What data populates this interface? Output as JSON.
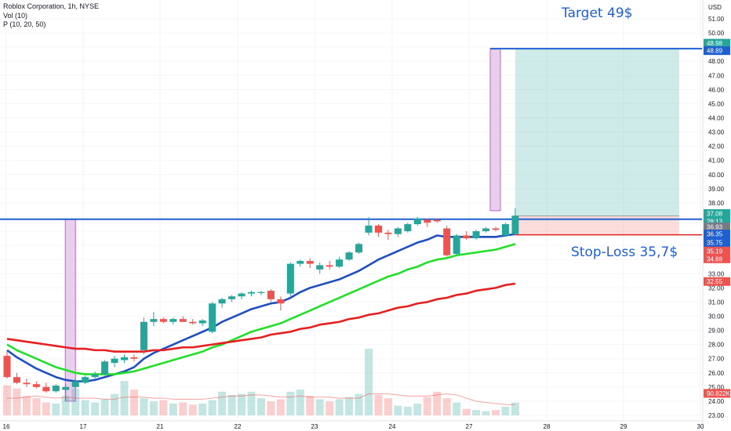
{
  "legend": {
    "title": "Roblox Corporation, 1h, NYSE",
    "vol": "Vol (10)",
    "ma": "P (10, 20, 50)"
  },
  "annotations": {
    "target": "Target 49$",
    "stop": "Stop-Loss 35,7$"
  },
  "axis": {
    "currency": "USD",
    "y_ticks": [
      23,
      24,
      25,
      26,
      27,
      28,
      29,
      30,
      31,
      32,
      33,
      34,
      35,
      36,
      37,
      38,
      39,
      40,
      41,
      42,
      43,
      44,
      45,
      46,
      47,
      48,
      49,
      50,
      51
    ],
    "x_labels": [
      "16",
      "17",
      "21",
      "22",
      "23",
      "24",
      "27",
      "28",
      "29",
      "30"
    ]
  },
  "price_tags": [
    {
      "label": "48.98",
      "value": 49.28,
      "color": "#26a69a"
    },
    {
      "label": "48.89",
      "value": 48.75,
      "color": "#1f5fd0"
    },
    {
      "label": "37.08",
      "value": 37.25,
      "color": "#26a69a"
    },
    {
      "label": "28:13",
      "value": 36.7,
      "color": "#26a69a"
    },
    {
      "label": "36.93",
      "value": 36.3,
      "color": "#787b86"
    },
    {
      "label": "36.35",
      "value": 35.8,
      "color": "#1f5fd0"
    },
    {
      "label": "35.75",
      "value": 35.2,
      "color": "#1f5fd0"
    },
    {
      "label": "35.19",
      "value": 34.6,
      "color": "#ef5350"
    },
    {
      "label": "34.88",
      "value": 34.05,
      "color": "#ef5350"
    },
    {
      "label": "32.55",
      "value": 32.45,
      "color": "#ef5350"
    },
    {
      "label": "90.822K",
      "value": 24.55,
      "color": "#ef5350"
    }
  ],
  "chart_data": {
    "type": "candlestick",
    "ylim": [
      23,
      51
    ],
    "candles": [
      {
        "o": 27.2,
        "h": 27.5,
        "l": 25.6,
        "c": 25.7
      },
      {
        "o": 25.7,
        "h": 26.0,
        "l": 25.2,
        "c": 25.3
      },
      {
        "o": 25.3,
        "h": 25.6,
        "l": 25.0,
        "c": 25.2
      },
      {
        "o": 25.2,
        "h": 25.4,
        "l": 24.9,
        "c": 25.0
      },
      {
        "o": 25.0,
        "h": 25.3,
        "l": 24.6,
        "c": 24.7
      },
      {
        "o": 24.7,
        "h": 25.2,
        "l": 24.6,
        "c": 25.1
      },
      {
        "o": 24.8,
        "h": 25.2,
        "l": 24.0,
        "c": 25.0
      },
      {
        "o": 25.0,
        "h": 25.6,
        "l": 24.9,
        "c": 25.4
      },
      {
        "o": 25.3,
        "h": 25.8,
        "l": 25.2,
        "c": 25.7
      },
      {
        "o": 25.7,
        "h": 26.1,
        "l": 25.6,
        "c": 25.9
      },
      {
        "o": 25.9,
        "h": 26.9,
        "l": 25.8,
        "c": 26.8
      },
      {
        "o": 26.7,
        "h": 27.2,
        "l": 26.4,
        "c": 27.0
      },
      {
        "o": 26.9,
        "h": 27.3,
        "l": 26.7,
        "c": 27.1
      },
      {
        "o": 27.1,
        "h": 27.3,
        "l": 26.8,
        "c": 27.0
      },
      {
        "o": 27.6,
        "h": 29.9,
        "l": 27.3,
        "c": 29.6
      },
      {
        "o": 29.6,
        "h": 30.3,
        "l": 29.3,
        "c": 29.8
      },
      {
        "o": 29.8,
        "h": 29.9,
        "l": 29.5,
        "c": 29.6
      },
      {
        "o": 29.6,
        "h": 29.9,
        "l": 29.4,
        "c": 29.8
      },
      {
        "o": 29.8,
        "h": 30.0,
        "l": 29.6,
        "c": 29.6
      },
      {
        "o": 29.6,
        "h": 29.8,
        "l": 29.4,
        "c": 29.5
      },
      {
        "o": 29.5,
        "h": 29.8,
        "l": 29.3,
        "c": 29.7
      },
      {
        "o": 28.9,
        "h": 31.0,
        "l": 28.8,
        "c": 30.9
      },
      {
        "o": 30.9,
        "h": 31.3,
        "l": 30.6,
        "c": 31.2
      },
      {
        "o": 31.2,
        "h": 31.5,
        "l": 31.0,
        "c": 31.4
      },
      {
        "o": 31.4,
        "h": 31.7,
        "l": 31.2,
        "c": 31.6
      },
      {
        "o": 31.6,
        "h": 31.8,
        "l": 31.4,
        "c": 31.7
      },
      {
        "o": 31.7,
        "h": 31.8,
        "l": 31.5,
        "c": 31.7
      },
      {
        "o": 31.8,
        "h": 31.9,
        "l": 31.0,
        "c": 31.2
      },
      {
        "o": 31.2,
        "h": 31.4,
        "l": 30.4,
        "c": 30.9
      },
      {
        "o": 31.6,
        "h": 33.8,
        "l": 31.4,
        "c": 33.7
      },
      {
        "o": 33.7,
        "h": 34.0,
        "l": 33.5,
        "c": 33.9
      },
      {
        "o": 33.9,
        "h": 34.1,
        "l": 33.4,
        "c": 33.7
      },
      {
        "o": 33.3,
        "h": 33.8,
        "l": 33.0,
        "c": 33.6
      },
      {
        "o": 33.6,
        "h": 33.9,
        "l": 33.3,
        "c": 33.5
      },
      {
        "o": 33.5,
        "h": 34.2,
        "l": 33.4,
        "c": 34.0
      },
      {
        "o": 34.0,
        "h": 34.6,
        "l": 33.9,
        "c": 34.5
      },
      {
        "o": 34.5,
        "h": 35.2,
        "l": 34.4,
        "c": 35.1
      },
      {
        "o": 35.9,
        "h": 37.0,
        "l": 35.7,
        "c": 36.4
      },
      {
        "o": 36.4,
        "h": 36.5,
        "l": 35.6,
        "c": 35.9
      },
      {
        "o": 35.9,
        "h": 36.1,
        "l": 35.4,
        "c": 35.8
      },
      {
        "o": 35.8,
        "h": 36.3,
        "l": 35.6,
        "c": 36.2
      },
      {
        "o": 36.0,
        "h": 36.6,
        "l": 35.9,
        "c": 36.5
      },
      {
        "o": 36.5,
        "h": 37.0,
        "l": 36.4,
        "c": 36.9
      },
      {
        "o": 36.8,
        "h": 36.9,
        "l": 36.3,
        "c": 36.6
      },
      {
        "o": 36.8,
        "h": 36.9,
        "l": 36.6,
        "c": 36.7
      },
      {
        "o": 36.2,
        "h": 36.4,
        "l": 34.2,
        "c": 34.3
      },
      {
        "o": 34.4,
        "h": 35.8,
        "l": 34.3,
        "c": 35.7
      },
      {
        "o": 35.7,
        "h": 36.0,
        "l": 35.4,
        "c": 35.5
      },
      {
        "o": 35.5,
        "h": 36.1,
        "l": 35.4,
        "c": 36.0
      },
      {
        "o": 36.0,
        "h": 36.3,
        "l": 35.9,
        "c": 36.2
      },
      {
        "o": 36.2,
        "h": 36.3,
        "l": 36.0,
        "c": 36.1
      },
      {
        "o": 35.7,
        "h": 36.6,
        "l": 35.6,
        "c": 36.5
      },
      {
        "o": 35.8,
        "h": 37.6,
        "l": 35.7,
        "c": 37.1
      }
    ],
    "volume": [
      2.8,
      2.5,
      1.8,
      1.6,
      1.2,
      1.1,
      1.8,
      2.5,
      1.4,
      1.2,
      1.5,
      2.0,
      3.2,
      2.4,
      1.6,
      1.3,
      1.4,
      1.1,
      1.2,
      1.0,
      1.1,
      1.4,
      2.2,
      1.9,
      2.0,
      2.2,
      1.6,
      1.3,
      1.5,
      2.2,
      2.4,
      1.8,
      1.5,
      1.3,
      1.5,
      1.7,
      2.0,
      6.2,
      1.9,
      1.6,
      0.9,
      0.8,
      1.1,
      1.7,
      2.2,
      1.6,
      1.2,
      0.6,
      0.5,
      0.4,
      0.5,
      0.8,
      1.2
    ],
    "volume_ma": [
      1.6,
      1.6,
      1.7,
      1.8,
      1.7,
      1.6,
      1.7,
      1.6,
      1.6,
      1.6,
      1.5,
      1.5,
      1.7,
      1.7,
      1.7,
      1.6,
      1.6,
      1.5,
      1.5,
      1.5,
      1.5,
      1.6,
      1.7,
      1.8,
      1.8,
      1.9,
      1.9,
      1.8,
      1.7,
      1.7,
      1.8,
      1.7,
      1.7,
      1.7,
      1.6,
      1.6,
      1.6,
      2.0,
      2.0,
      2.0,
      1.9,
      1.8,
      1.8,
      1.8,
      1.9,
      2.0,
      1.9,
      1.6,
      1.3,
      1.2,
      1.1,
      1.0,
      1.0
    ],
    "ma": [
      {
        "name": "10",
        "color": "#1f4fbf",
        "values": [
          27.6,
          27.1,
          26.7,
          26.3,
          26.0,
          25.7,
          25.5,
          25.4,
          25.4,
          25.5,
          25.7,
          25.9,
          26.1,
          26.4,
          27.0,
          27.4,
          27.7,
          28.0,
          28.3,
          28.6,
          28.9,
          29.2,
          29.6,
          29.9,
          30.2,
          30.5,
          30.7,
          30.9,
          31.0,
          31.3,
          31.7,
          32.0,
          32.2,
          32.4,
          32.6,
          32.9,
          33.2,
          33.6,
          34.0,
          34.3,
          34.6,
          34.9,
          35.2,
          35.4,
          35.7,
          35.6,
          35.6,
          35.6,
          35.6,
          35.6,
          35.6,
          35.7,
          35.8
        ]
      },
      {
        "name": "20",
        "color": "#22e02a",
        "values": [
          28.0,
          27.6,
          27.3,
          27.0,
          26.7,
          26.4,
          26.2,
          26.0,
          25.9,
          25.9,
          25.9,
          25.9,
          26.0,
          26.1,
          26.3,
          26.5,
          26.7,
          26.9,
          27.1,
          27.3,
          27.5,
          27.8,
          28.0,
          28.3,
          28.6,
          28.9,
          29.1,
          29.3,
          29.5,
          29.8,
          30.1,
          30.4,
          30.7,
          31.0,
          31.3,
          31.6,
          31.9,
          32.2,
          32.5,
          32.8,
          33.0,
          33.3,
          33.5,
          33.8,
          34.0,
          34.1,
          34.3,
          34.4,
          34.5,
          34.6,
          34.7,
          34.9,
          35.1
        ]
      },
      {
        "name": "50",
        "color": "#e52020",
        "values": [
          28.4,
          28.3,
          28.2,
          28.1,
          28.0,
          27.9,
          27.8,
          27.7,
          27.7,
          27.6,
          27.6,
          27.5,
          27.5,
          27.5,
          27.5,
          27.6,
          27.6,
          27.7,
          27.8,
          27.8,
          27.9,
          28.0,
          28.1,
          28.2,
          28.3,
          28.4,
          28.5,
          28.7,
          28.8,
          28.9,
          29.1,
          29.2,
          29.4,
          29.5,
          29.6,
          29.8,
          29.9,
          30.1,
          30.2,
          30.4,
          30.6,
          30.7,
          30.9,
          31.0,
          31.2,
          31.3,
          31.5,
          31.6,
          31.8,
          31.9,
          32.0,
          32.2,
          32.3
        ]
      }
    ],
    "levels": {
      "resistance": 36.85,
      "target": 48.89,
      "stop_loss": 35.75,
      "entry": 37.08
    }
  }
}
